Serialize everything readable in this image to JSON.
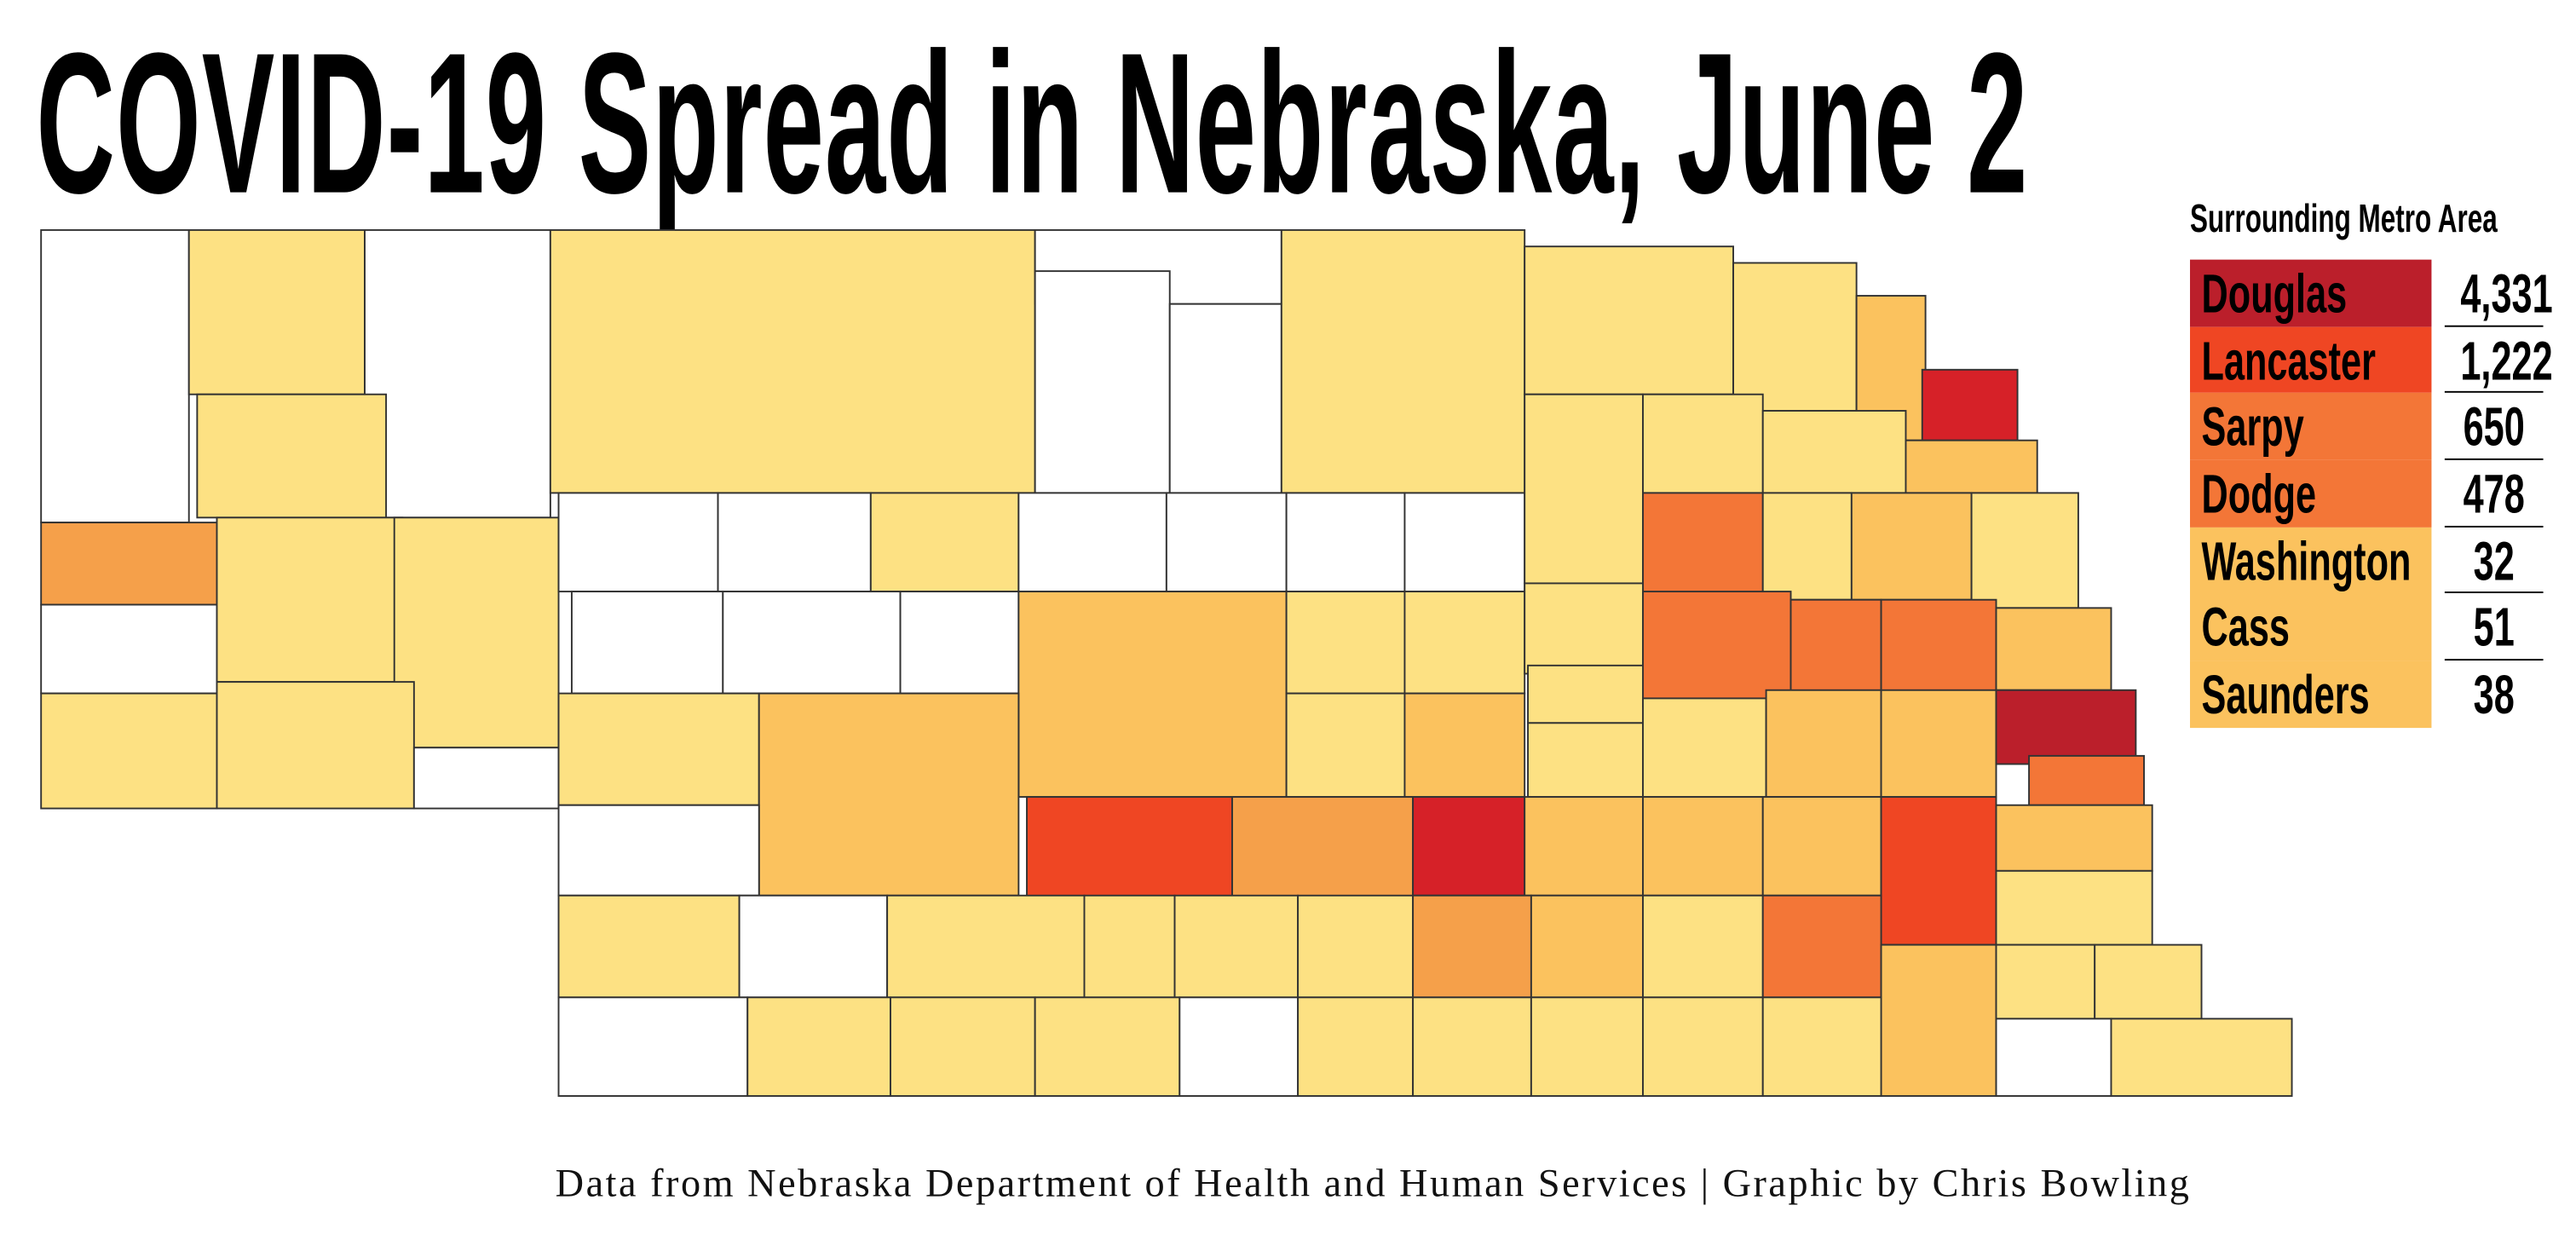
{
  "title": "COVID-19 Spread in Nebraska, June 2",
  "legend": {
    "title": "Surrounding Metro Area",
    "rows": [
      {
        "county": "Douglas",
        "cases": "4,331",
        "color": "#BB1F2B"
      },
      {
        "county": "Lancaster",
        "cases": "1,222",
        "color": "#EF4623"
      },
      {
        "county": "Sarpy",
        "cases": "650",
        "color": "#F37637"
      },
      {
        "county": "Dodge",
        "cases": "478",
        "color": "#F37637"
      },
      {
        "county": "Washington",
        "cases": "32",
        "color": "#FBC25E"
      },
      {
        "county": "Cass",
        "cases": "51",
        "color": "#FBC25E"
      },
      {
        "county": "Saunders",
        "cases": "38",
        "color": "#FBC25E"
      }
    ]
  },
  "colors": {
    "none": "#FFFFFF",
    "low": "#FDE183",
    "mid": "#FBC25E",
    "orange": "#F5A04A",
    "high": "#F37637",
    "higher": "#EF4623",
    "red": "#D62128",
    "darkred": "#BB1F2B"
  },
  "footer": "Data from Nebraska Department of Health and Human Services | Graphic by Chris Bowling"
}
